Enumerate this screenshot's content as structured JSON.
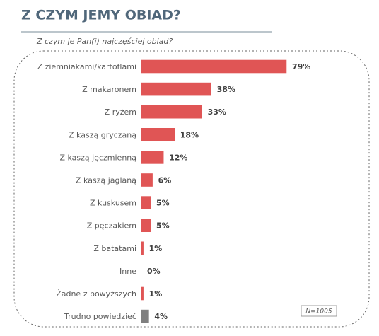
{
  "chart_data": {
    "type": "bar",
    "orientation": "horizontal",
    "title": "Z CZYM JEMY OBIAD?",
    "subtitle": "Z czym je Pan(i) najczęściej obiad?",
    "categories": [
      "Z ziemniakami/kartoflami",
      "Z makaronem",
      "Z ryżem",
      "Z kaszą gryczaną",
      "Z kaszą jęczmienną",
      "Z kaszą jaglaną",
      "Z kuskusem",
      "Z pęczakiem",
      "Z batatami",
      "Inne",
      "Żadne z powyższych",
      "Trudno powiedzieć"
    ],
    "values": [
      79,
      38,
      33,
      18,
      12,
      6,
      5,
      5,
      1,
      0,
      1,
      4
    ],
    "value_labels": [
      "79%",
      "38%",
      "33%",
      "18%",
      "12%",
      "6%",
      "5%",
      "5%",
      "1%",
      "0%",
      "1%",
      "4%"
    ],
    "colors": [
      "#e05555",
      "#e05555",
      "#e05555",
      "#e05555",
      "#e05555",
      "#e05555",
      "#e05555",
      "#e05555",
      "#e05555",
      "#e05555",
      "#e05555",
      "#7f7f7f"
    ],
    "note": "N=1005"
  }
}
